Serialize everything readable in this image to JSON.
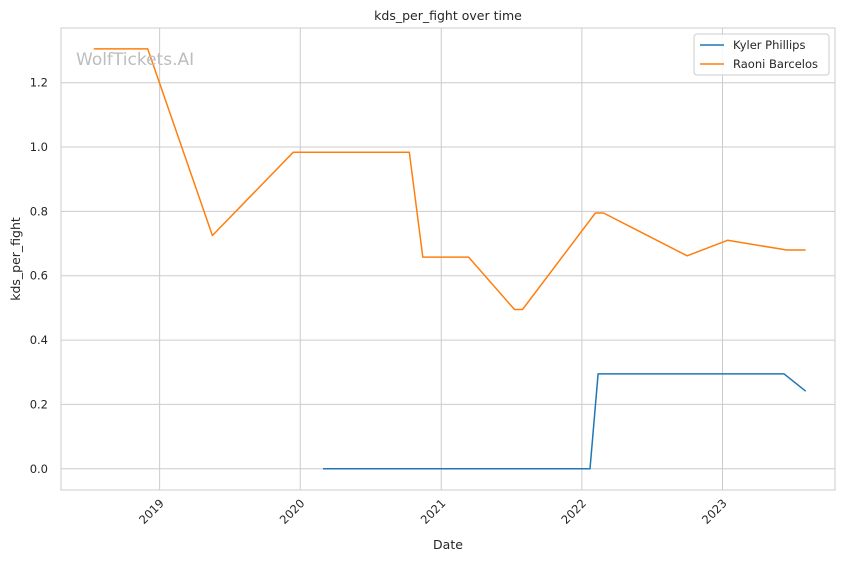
{
  "chart_data": {
    "type": "line",
    "title": "kds_per_fight over time",
    "xlabel": "Date",
    "ylabel": "kds_per_fight",
    "watermark": "WolfTickets.AI",
    "xlim": [
      "2018-04-20",
      "2023-10-20"
    ],
    "ylim": [
      -0.066,
      1.37
    ],
    "x_ticks": [
      {
        "date": "2019-01-01",
        "label": "2019"
      },
      {
        "date": "2020-01-01",
        "label": "2020"
      },
      {
        "date": "2021-01-01",
        "label": "2021"
      },
      {
        "date": "2022-01-01",
        "label": "2022"
      },
      {
        "date": "2023-01-01",
        "label": "2023"
      }
    ],
    "y_ticks": [
      0.0,
      0.2,
      0.4,
      0.6,
      0.8,
      1.0,
      1.2
    ],
    "y_tick_labels": [
      "0.0",
      "0.2",
      "0.4",
      "0.6",
      "0.8",
      "1.0",
      "1.2"
    ],
    "grid": true,
    "legend_position": "top-right",
    "series": [
      {
        "name": "Kyler Phillips",
        "color": "#1f77b4",
        "points": [
          {
            "x": "2020-02-29",
            "y": 0.0
          },
          {
            "x": "2022-01-22",
            "y": 0.0
          },
          {
            "x": "2022-02-12",
            "y": 0.295
          },
          {
            "x": "2023-06-10",
            "y": 0.295
          },
          {
            "x": "2023-08-05",
            "y": 0.241
          }
        ]
      },
      {
        "name": "Raoni Barcelos",
        "color": "#ff7f0e",
        "points": [
          {
            "x": "2018-07-14",
            "y": 1.305
          },
          {
            "x": "2018-12-01",
            "y": 1.305
          },
          {
            "x": "2019-05-18",
            "y": 0.725
          },
          {
            "x": "2019-12-14",
            "y": 0.984
          },
          {
            "x": "2020-10-10",
            "y": 0.984
          },
          {
            "x": "2020-11-14",
            "y": 0.658
          },
          {
            "x": "2021-03-13",
            "y": 0.658
          },
          {
            "x": "2021-07-10",
            "y": 0.495
          },
          {
            "x": "2021-07-31",
            "y": 0.495
          },
          {
            "x": "2022-02-05",
            "y": 0.795
          },
          {
            "x": "2022-02-26",
            "y": 0.795
          },
          {
            "x": "2022-10-01",
            "y": 0.662
          },
          {
            "x": "2023-01-14",
            "y": 0.71
          },
          {
            "x": "2023-06-17",
            "y": 0.68
          },
          {
            "x": "2023-08-05",
            "y": 0.68
          }
        ]
      }
    ]
  }
}
